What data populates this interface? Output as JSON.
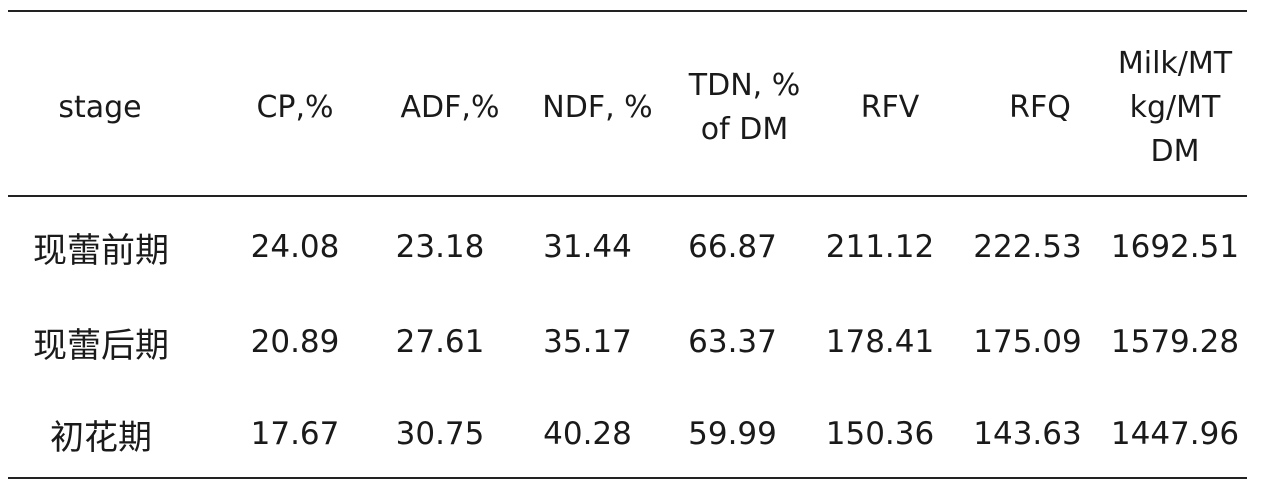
{
  "table": {
    "headers": [
      {
        "lines": [
          "stage"
        ]
      },
      {
        "lines": [
          "CP,%"
        ]
      },
      {
        "lines": [
          "ADF,%"
        ]
      },
      {
        "lines": [
          "NDF, %"
        ]
      },
      {
        "lines": [
          "TDN, %",
          "of DM"
        ]
      },
      {
        "lines": [
          "RFV"
        ]
      },
      {
        "lines": [
          "RFQ"
        ]
      },
      {
        "lines": [
          "Milk/MT",
          "kg/MT",
          "DM"
        ]
      }
    ],
    "rows": [
      {
        "stage": "现蕾前期",
        "cp": "24.08",
        "adf": "23.18",
        "ndf": "31.44",
        "tdn": "66.87",
        "rfv": "211.12",
        "rfq": "222.53",
        "milk": "1692.51"
      },
      {
        "stage": "现蕾后期",
        "cp": "20.89",
        "adf": "27.61",
        "ndf": "35.17",
        "tdn": "63.37",
        "rfv": "178.41",
        "rfq": "175.09",
        "milk": "1579.28"
      },
      {
        "stage": "初花期",
        "cp": "17.67",
        "adf": "30.75",
        "ndf": "40.28",
        "tdn": "59.99",
        "rfv": "150.36",
        "rfq": "143.63",
        "milk": "1447.96"
      }
    ]
  }
}
